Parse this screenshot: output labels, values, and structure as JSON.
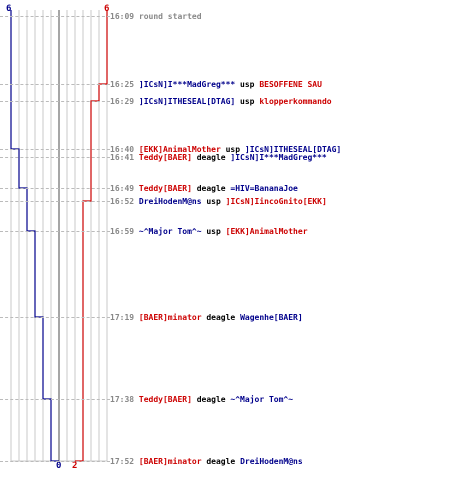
{
  "colors": {
    "red": "#cc0000",
    "blue": "#00008b",
    "grid": "#c8c8c8",
    "center": "#808080"
  },
  "scores": {
    "blue_top": "6",
    "red_top": "6",
    "blue_bottom": "0",
    "red_bottom": "2"
  },
  "events": [
    {
      "time": "16:09",
      "parts": [
        {
          "t": "round started",
          "c": "gray"
        }
      ]
    },
    {
      "time": "16:25",
      "parts": [
        {
          "t": "]ICsN]I***MadGreg***",
          "c": "blue"
        },
        {
          "t": " usp ",
          "c": "neutral"
        },
        {
          "t": "BESOFFENE SAU",
          "c": "red"
        }
      ]
    },
    {
      "time": "16:29",
      "parts": [
        {
          "t": "]ICsN]ITHESEAL[DTAG]",
          "c": "blue"
        },
        {
          "t": " usp ",
          "c": "neutral"
        },
        {
          "t": "klopperkommando",
          "c": "red"
        }
      ]
    },
    {
      "time": "16:40",
      "parts": [
        {
          "t": "[EKK]AnimalMother",
          "c": "red"
        },
        {
          "t": " usp ",
          "c": "neutral"
        },
        {
          "t": "]ICsN]ITHESEAL[DTAG]",
          "c": "blue"
        }
      ]
    },
    {
      "time": "16:41",
      "parts": [
        {
          "t": "Teddy[BAER]",
          "c": "red"
        },
        {
          "t": " deagle ",
          "c": "neutral"
        },
        {
          "t": "]ICsN]I***MadGreg***",
          "c": "blue"
        }
      ]
    },
    {
      "time": "16:49",
      "parts": [
        {
          "t": "Teddy[BAER]",
          "c": "red"
        },
        {
          "t": " deagle ",
          "c": "neutral"
        },
        {
          "t": "=HIV=BananaJoe",
          "c": "blue"
        }
      ]
    },
    {
      "time": "16:52",
      "parts": [
        {
          "t": "DreiHodenM@ns",
          "c": "blue"
        },
        {
          "t": " usp ",
          "c": "neutral"
        },
        {
          "t": "]ICsN]IincoGnito[EKK]",
          "c": "red"
        }
      ]
    },
    {
      "time": "16:59",
      "parts": [
        {
          "t": "~^Major Tom^~",
          "c": "blue"
        },
        {
          "t": " usp ",
          "c": "neutral"
        },
        {
          "t": "[EKK]AnimalMother",
          "c": "red"
        }
      ]
    },
    {
      "time": "17:19",
      "parts": [
        {
          "t": "[BAER]minator",
          "c": "red"
        },
        {
          "t": " deagle ",
          "c": "neutral"
        },
        {
          "t": "Wagenhe[BAER]",
          "c": "blue"
        }
      ]
    },
    {
      "time": "17:38",
      "parts": [
        {
          "t": "Teddy[BAER]",
          "c": "red"
        },
        {
          "t": " deagle ",
          "c": "neutral"
        },
        {
          "t": "~^Major Tom^~",
          "c": "blue"
        }
      ]
    },
    {
      "time": "17:52",
      "parts": [
        {
          "t": "[BAER]minator",
          "c": "red"
        },
        {
          "t": " deagle ",
          "c": "neutral"
        },
        {
          "t": "DreiHodenM@ns",
          "c": "blue"
        }
      ]
    }
  ],
  "chart_data": {
    "type": "step",
    "series": [
      {
        "values": [
          6,
          6,
          6,
          5,
          5,
          4,
          4,
          3,
          2,
          1,
          0
        ]
      },
      {
        "values": [
          6,
          5,
          4,
          4,
          4,
          4,
          3,
          3,
          3,
          3,
          2
        ]
      }
    ]
  }
}
